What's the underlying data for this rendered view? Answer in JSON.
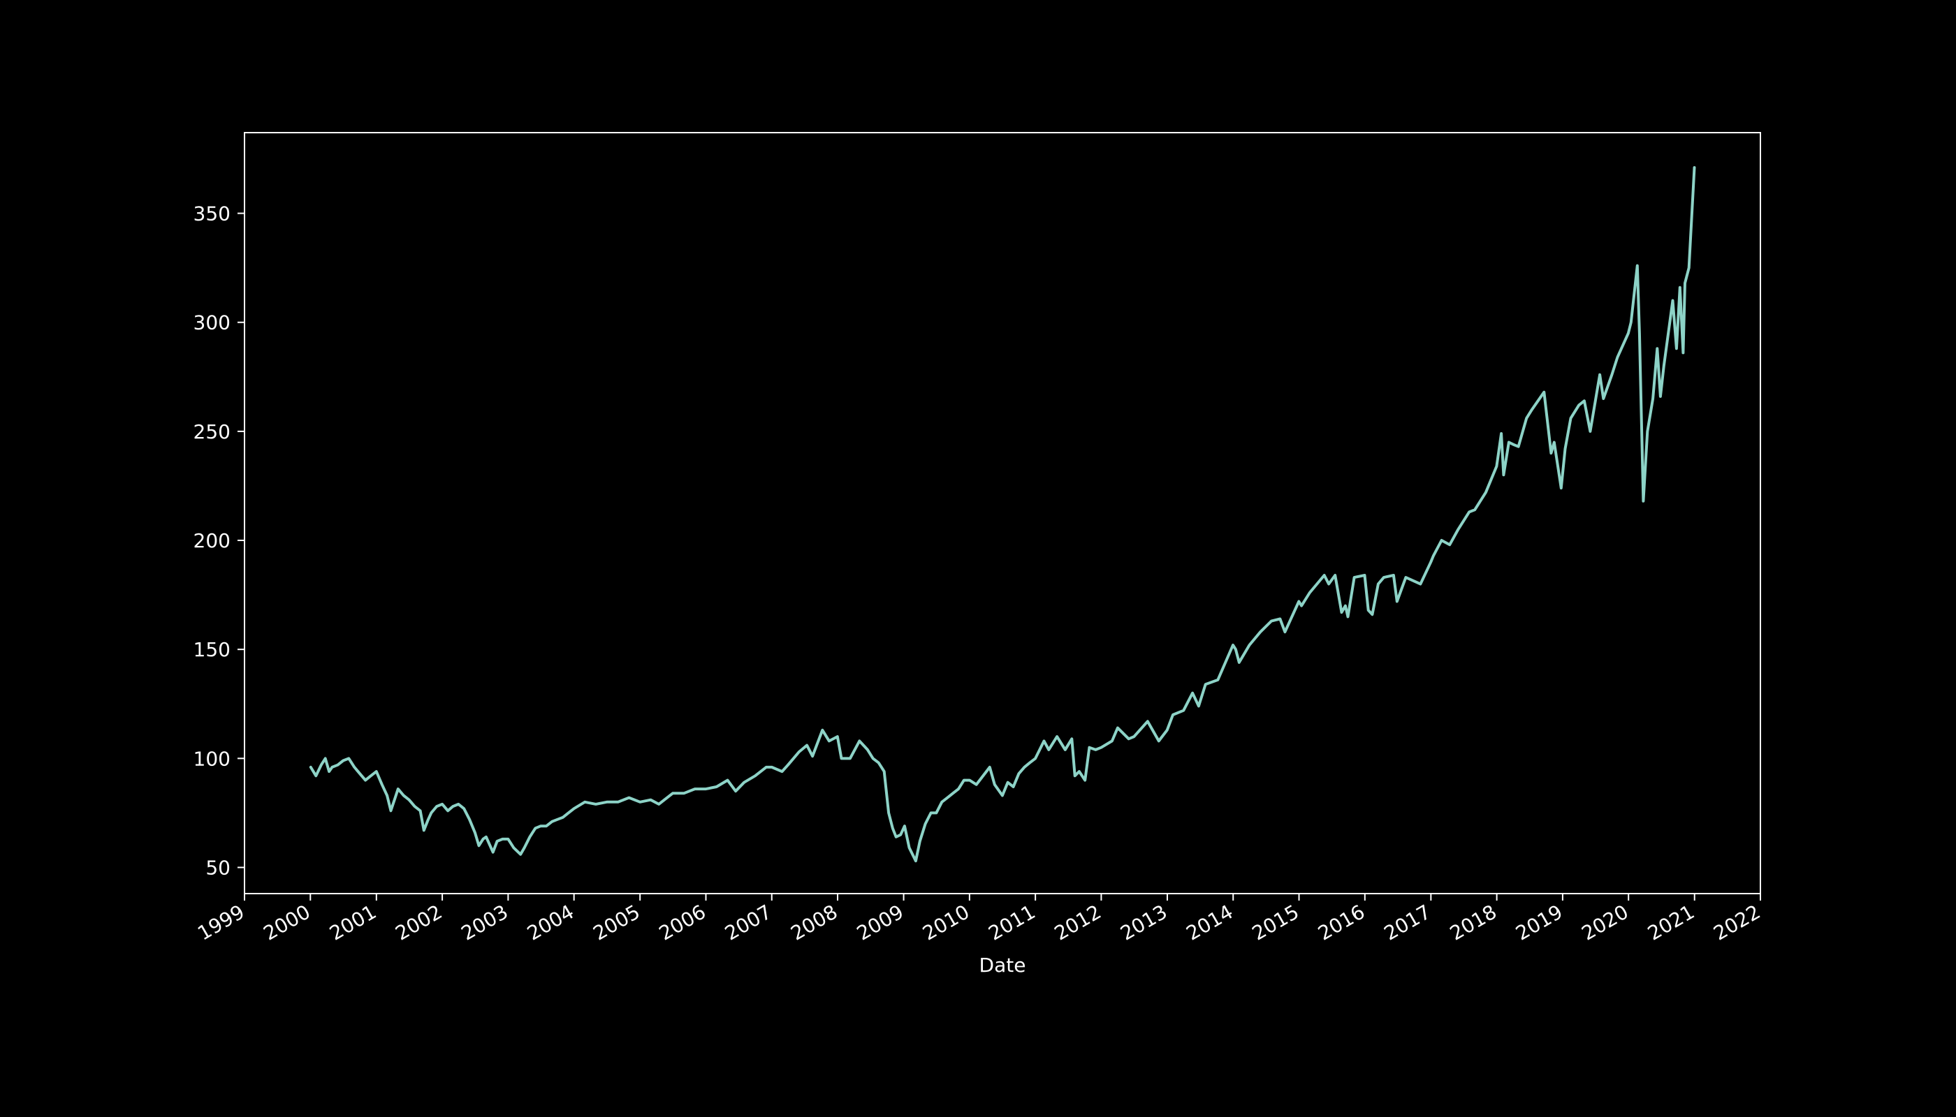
{
  "chart_data": {
    "type": "line",
    "title": "",
    "xlabel": "Date",
    "ylabel": "",
    "xlim": [
      "1999-01-01",
      "2022-01-01"
    ],
    "ylim": [
      38,
      387
    ],
    "x_ticks": [
      "1999",
      "2000",
      "2001",
      "2002",
      "2003",
      "2004",
      "2005",
      "2006",
      "2007",
      "2008",
      "2009",
      "2010",
      "2011",
      "2012",
      "2013",
      "2014",
      "2015",
      "2016",
      "2017",
      "2018",
      "2019",
      "2020",
      "2021",
      "2022"
    ],
    "y_ticks": [
      50,
      100,
      150,
      200,
      250,
      300,
      350
    ],
    "grid": false,
    "legend": "none",
    "colors": {
      "background": "#000000",
      "line": "#8dd3c7",
      "axes": "#ffffff"
    },
    "series": [
      {
        "x": [
          "2000-01-03",
          "2000-02-01",
          "2000-03-01",
          "2000-03-24",
          "2000-04-14",
          "2000-05-01",
          "2000-06-01",
          "2000-07-01",
          "2000-08-01",
          "2000-09-01",
          "2000-10-01",
          "2000-11-01",
          "2000-12-01",
          "2001-01-01",
          "2001-02-01",
          "2001-03-01",
          "2001-03-22",
          "2001-04-15",
          "2001-05-01",
          "2001-06-01",
          "2001-07-01",
          "2001-08-01",
          "2001-09-01",
          "2001-09-21",
          "2001-10-15",
          "2001-11-01",
          "2001-12-01",
          "2002-01-01",
          "2002-02-01",
          "2002-03-01",
          "2002-04-01",
          "2002-05-01",
          "2002-06-01",
          "2002-07-01",
          "2002-07-23",
          "2002-08-15",
          "2002-09-01",
          "2002-10-09",
          "2002-11-01",
          "2002-12-01",
          "2003-01-01",
          "2003-02-01",
          "2003-03-11",
          "2003-04-01",
          "2003-05-01",
          "2003-06-01",
          "2003-07-01",
          "2003-08-01",
          "2003-09-01",
          "2003-10-01",
          "2003-11-01",
          "2003-12-01",
          "2004-01-01",
          "2004-03-01",
          "2004-05-01",
          "2004-07-01",
          "2004-09-01",
          "2004-11-01",
          "2005-01-01",
          "2005-03-01",
          "2005-04-15",
          "2005-07-01",
          "2005-09-01",
          "2005-11-01",
          "2006-01-01",
          "2006-03-01",
          "2006-05-01",
          "2006-06-15",
          "2006-08-01",
          "2006-10-01",
          "2006-12-01",
          "2007-01-01",
          "2007-02-27",
          "2007-04-01",
          "2007-06-01",
          "2007-07-15",
          "2007-08-15",
          "2007-10-09",
          "2007-11-15",
          "2007-12-31",
          "2008-01-22",
          "2008-03-10",
          "2008-05-01",
          "2008-06-15",
          "2008-07-15",
          "2008-08-15",
          "2008-09-15",
          "2008-10-10",
          "2008-11-01",
          "2008-11-20",
          "2008-12-15",
          "2009-01-06",
          "2009-02-01",
          "2009-03-09",
          "2009-04-01",
          "2009-05-01",
          "2009-06-01",
          "2009-07-01",
          "2009-08-01",
          "2009-09-01",
          "2009-10-01",
          "2009-11-01",
          "2009-12-01",
          "2010-01-01",
          "2010-02-08",
          "2010-04-23",
          "2010-05-20",
          "2010-07-02",
          "2010-08-01",
          "2010-09-01",
          "2010-10-01",
          "2010-11-01",
          "2010-12-01",
          "2011-01-01",
          "2011-02-18",
          "2011-03-16",
          "2011-05-01",
          "2011-06-15",
          "2011-07-22",
          "2011-08-08",
          "2011-09-01",
          "2011-10-03",
          "2011-10-27",
          "2011-12-01",
          "2012-01-01",
          "2012-03-01",
          "2012-04-01",
          "2012-06-01",
          "2012-07-01",
          "2012-09-14",
          "2012-11-15",
          "2012-12-31",
          "2013-02-01",
          "2013-04-01",
          "2013-05-21",
          "2013-06-24",
          "2013-08-01",
          "2013-10-08",
          "2013-12-31",
          "2014-01-15",
          "2014-02-03",
          "2014-04-01",
          "2014-06-01",
          "2014-08-01",
          "2014-09-18",
          "2014-10-15",
          "2014-12-31",
          "2015-01-15",
          "2015-03-01",
          "2015-05-21",
          "2015-06-15",
          "2015-07-20",
          "2015-08-25",
          "2015-09-15",
          "2015-09-29",
          "2015-11-03",
          "2015-12-31",
          "2016-01-20",
          "2016-02-11",
          "2016-03-15",
          "2016-04-15",
          "2016-06-08",
          "2016-06-27",
          "2016-08-15",
          "2016-11-04",
          "2016-12-31",
          "2017-01-15",
          "2017-03-01",
          "2017-04-15",
          "2017-06-01",
          "2017-08-01",
          "2017-09-01",
          "2017-11-01",
          "2017-12-31",
          "2018-01-26",
          "2018-02-08",
          "2018-03-09",
          "2018-04-02",
          "2018-05-01",
          "2018-06-15",
          "2018-07-15",
          "2018-09-20",
          "2018-10-29",
          "2018-11-15",
          "2018-12-24",
          "2019-01-15",
          "2019-02-15",
          "2019-04-01",
          "2019-05-01",
          "2019-06-03",
          "2019-07-26",
          "2019-08-15",
          "2019-10-01",
          "2019-11-01",
          "2019-12-31",
          "2020-01-15",
          "2020-02-19",
          "2020-03-02",
          "2020-03-23",
          "2020-04-15",
          "2020-05-15",
          "2020-06-08",
          "2020-06-26",
          "2020-07-15",
          "2020-09-02",
          "2020-09-23",
          "2020-10-12",
          "2020-10-30",
          "2020-11-09",
          "2020-12-01",
          "2020-12-31"
        ],
        "values": [
          96,
          92,
          97,
          100,
          94,
          96,
          97,
          99,
          100,
          96,
          93,
          90,
          92,
          94,
          88,
          83,
          76,
          82,
          86,
          83,
          81,
          78,
          76,
          67,
          72,
          75,
          78,
          79,
          76,
          78,
          79,
          77,
          72,
          66,
          60,
          63,
          64,
          57,
          62,
          63,
          63,
          59,
          56,
          59,
          64,
          68,
          69,
          69,
          71,
          72,
          73,
          75,
          77,
          80,
          79,
          80,
          80,
          82,
          80,
          81,
          79,
          84,
          84,
          86,
          86,
          87,
          90,
          85,
          89,
          92,
          96,
          96,
          94,
          97,
          103,
          106,
          101,
          113,
          108,
          110,
          100,
          100,
          108,
          104,
          100,
          98,
          94,
          75,
          68,
          64,
          65,
          69,
          59,
          53,
          62,
          70,
          75,
          75,
          80,
          82,
          84,
          86,
          90,
          90,
          88,
          96,
          88,
          83,
          89,
          87,
          93,
          96,
          98,
          100,
          108,
          104,
          110,
          104,
          109,
          92,
          94,
          90,
          105,
          104,
          105,
          108,
          114,
          109,
          110,
          117,
          108,
          113,
          120,
          122,
          130,
          124,
          134,
          136,
          152,
          150,
          144,
          152,
          158,
          163,
          164,
          158,
          172,
          170,
          176,
          184,
          180,
          184,
          167,
          170,
          165,
          183,
          184,
          168,
          166,
          180,
          183,
          184,
          172,
          183,
          180,
          190,
          193,
          200,
          198,
          205,
          213,
          214,
          222,
          234,
          249,
          230,
          245,
          244,
          243,
          256,
          260,
          268,
          240,
          245,
          224,
          242,
          256,
          262,
          264,
          250,
          276,
          265,
          276,
          284,
          295,
          300,
          326,
          295,
          218,
          250,
          265,
          288,
          266,
          280,
          310,
          288,
          316,
          286,
          318,
          325,
          371
        ]
      }
    ]
  }
}
